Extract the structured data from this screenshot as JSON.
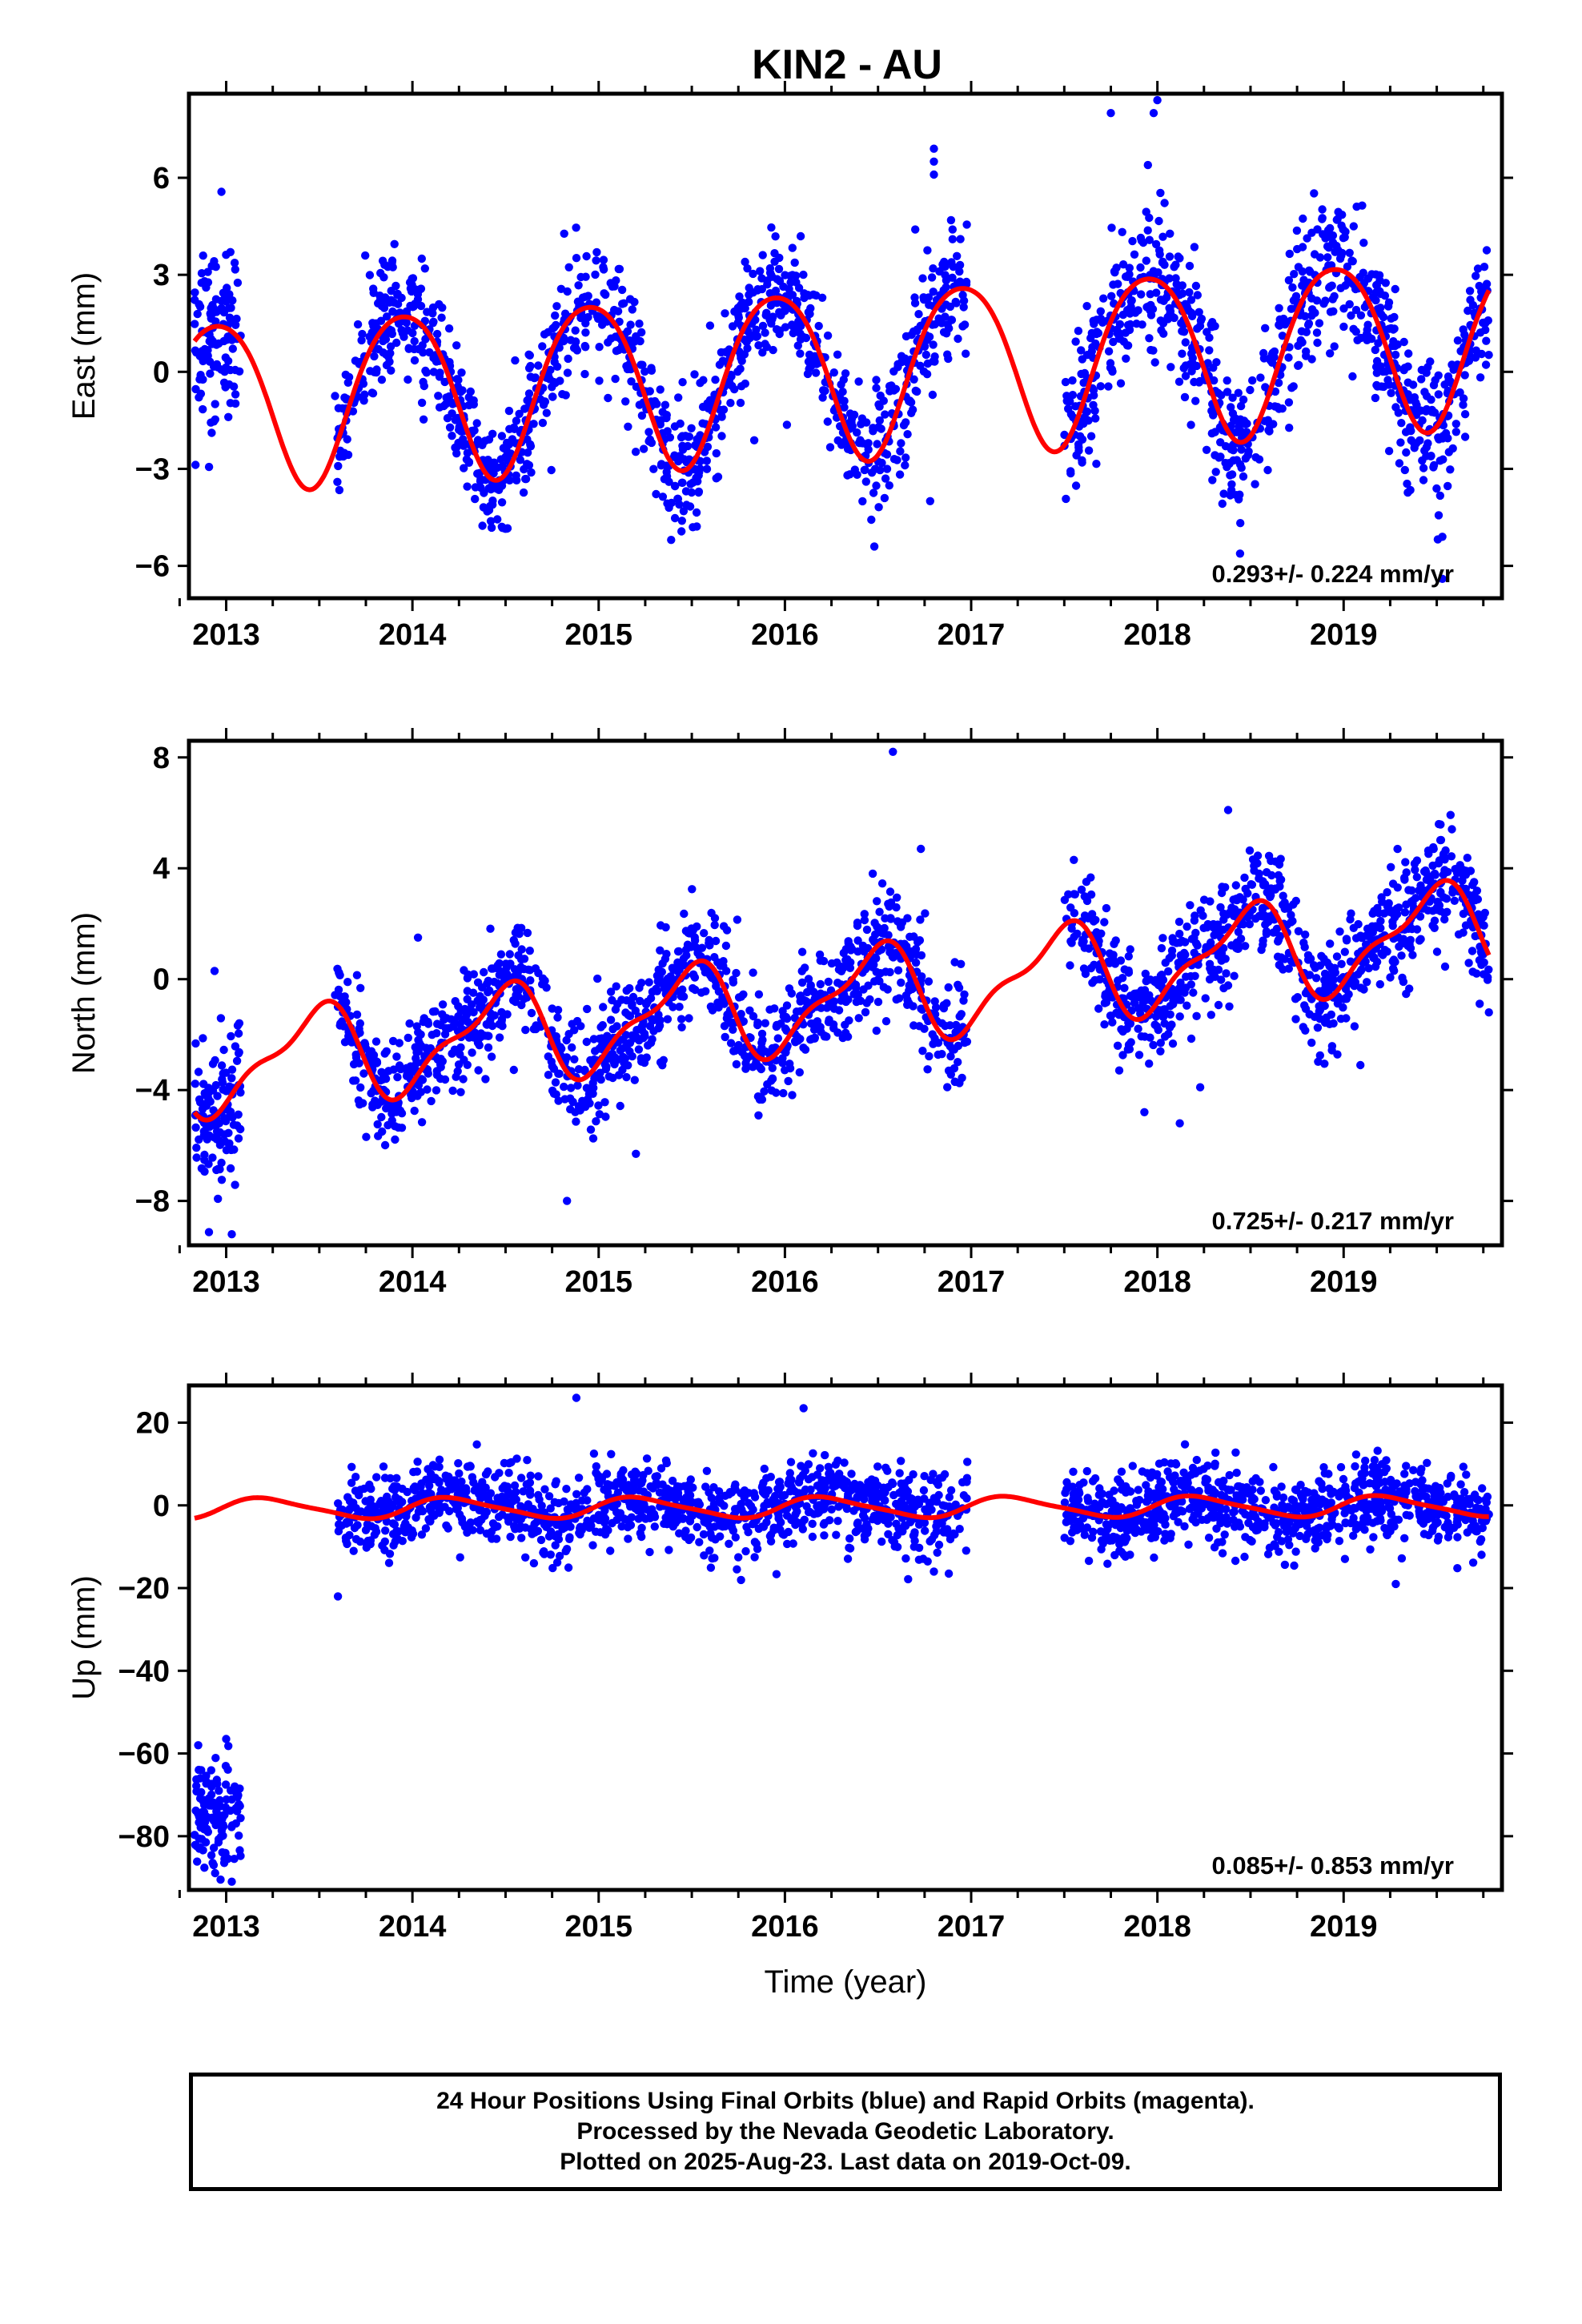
{
  "chart_data": [
    {
      "type": "scatter",
      "title": "KIN2 - AU",
      "ylabel": "East (mm)",
      "xlabel": "",
      "xlim": [
        2012.8,
        2019.85
      ],
      "ylim": [
        -7.0,
        8.6
      ],
      "yticks": [
        -6,
        -3,
        0,
        3,
        6
      ],
      "xticks": [
        2013,
        2014,
        2015,
        2016,
        2017,
        2018,
        2019
      ],
      "rate": "0.293+/- 0.224 mm/yr",
      "grid": false,
      "colors": {
        "points": "#0000ff",
        "model": "#ff0000"
      },
      "model": {
        "offset": 0.0,
        "trend": 0.293,
        "annual_amp": 2.6,
        "annual_phase": 0.95,
        "semi_amp": 0.3,
        "semi_phase": 0.2
      },
      "series": [
        {
          "label": "daily positions (blue)",
          "segments": [
            {
              "t0": 2012.83,
              "t1": 2013.08,
              "n": 120,
              "noise": 1.4
            },
            {
              "t0": 2013.58,
              "t1": 2016.98,
              "n": 1150,
              "noise": 0.95
            },
            {
              "t0": 2017.5,
              "t1": 2019.78,
              "n": 820,
              "noise": 1.1
            }
          ],
          "points": [
            [
              2014.05,
              3.5
            ],
            [
              2014.99,
              3.7
            ],
            [
              2016.8,
              6.9
            ],
            [
              2016.8,
              6.5
            ],
            [
              2016.8,
              6.1
            ],
            [
              2016.7,
              4.4
            ],
            [
              2016.9,
              4.4
            ],
            [
              2016.9,
              4.1
            ],
            [
              2016.96,
              2.0
            ],
            [
              2016.78,
              -4.0
            ],
            [
              2017.75,
              8.0
            ],
            [
              2018.0,
              8.4
            ],
            [
              2017.98,
              8.0
            ],
            [
              2019.53,
              -6.4
            ],
            [
              2019.53,
              -5.1
            ],
            [
              2016.48,
              -5.4
            ]
          ]
        }
      ]
    },
    {
      "type": "scatter",
      "title": "",
      "ylabel": "North (mm)",
      "xlabel": "",
      "xlim": [
        2012.8,
        2019.85
      ],
      "ylim": [
        -9.6,
        8.6
      ],
      "yticks": [
        -8,
        -4,
        0,
        4,
        8
      ],
      "xticks": [
        2013,
        2014,
        2015,
        2016,
        2017,
        2018,
        2019
      ],
      "rate": "0.725+/- 0.217 mm/yr",
      "grid": false,
      "colors": {
        "points": "#0000ff",
        "model": "#ff0000"
      },
      "model": {
        "offset": -0.9,
        "trend": 0.725,
        "annual_amp": 1.6,
        "annual_phase": 0.47,
        "semi_amp": 0.6,
        "semi_phase": 0.1,
        "start_value": -4.5
      },
      "series": [
        {
          "label": "daily positions (blue)",
          "segments": [
            {
              "t0": 2012.83,
              "t1": 2013.08,
              "n": 120,
              "noise": 1.4
            },
            {
              "t0": 2013.58,
              "t1": 2016.98,
              "n": 1150,
              "noise": 1.0
            },
            {
              "t0": 2017.5,
              "t1": 2019.78,
              "n": 820,
              "noise": 1.0
            }
          ],
          "points": [
            [
              2016.58,
              8.2
            ],
            [
              2016.73,
              4.7
            ],
            [
              2018.38,
              6.1
            ],
            [
              2014.03,
              1.5
            ],
            [
              2014.83,
              -8.0
            ],
            [
              2015.2,
              -6.3
            ],
            [
              2016.96,
              -2.0
            ],
            [
              2016.88,
              -3.3
            ],
            [
              2018.12,
              -5.2
            ],
            [
              2018.23,
              -3.9
            ],
            [
              2019.78,
              -1.2
            ],
            [
              2019.09,
              -3.1
            ],
            [
              2013.03,
              -9.2
            ]
          ]
        }
      ]
    },
    {
      "type": "scatter",
      "title": "",
      "ylabel": "Up (mm)",
      "xlabel": "Time (year)",
      "xlim": [
        2012.8,
        2019.85
      ],
      "ylim": [
        -93,
        29
      ],
      "yticks": [
        -80,
        -60,
        -40,
        -20,
        0,
        20
      ],
      "xticks": [
        2013,
        2014,
        2015,
        2016,
        2017,
        2018,
        2019
      ],
      "rate": "0.085+/- 0.853 mm/yr",
      "grid": false,
      "colors": {
        "points": "#0000ff",
        "model": "#ff0000"
      },
      "model": {
        "offset": -0.5,
        "trend": 0.085,
        "annual_amp": 2.4,
        "annual_phase": 0.22,
        "semi_amp": 0.5,
        "semi_phase": 0.1
      },
      "series": [
        {
          "label": "daily positions (blue)",
          "segments": [
            {
              "t0": 2012.83,
              "t1": 2013.08,
              "n": 120,
              "noise": 6.0,
              "level": -75
            },
            {
              "t0": 2013.6,
              "t1": 2016.98,
              "n": 1150,
              "noise": 4.8
            },
            {
              "t0": 2017.5,
              "t1": 2019.78,
              "n": 820,
              "noise": 4.6
            }
          ],
          "points": [
            [
              2013.6,
              -22.0
            ],
            [
              2014.88,
              26.0
            ],
            [
              2016.1,
              23.5
            ],
            [
              2019.28,
              -19.0
            ],
            [
              2016.88,
              -16.5
            ],
            [
              2016.8,
              -16.0
            ],
            [
              2013.03,
              -91.0
            ],
            [
              2012.85,
              -58.0
            ],
            [
              2013.0,
              -56.5
            ]
          ]
        }
      ]
    }
  ],
  "footer": {
    "line1": "24 Hour Positions Using Final Orbits (blue) and Rapid Orbits (magenta).",
    "line2": "Processed by the Nevada Geodetic Laboratory.",
    "line3": "Plotted on 2025-Aug-23. Last data on 2019-Oct-09."
  }
}
